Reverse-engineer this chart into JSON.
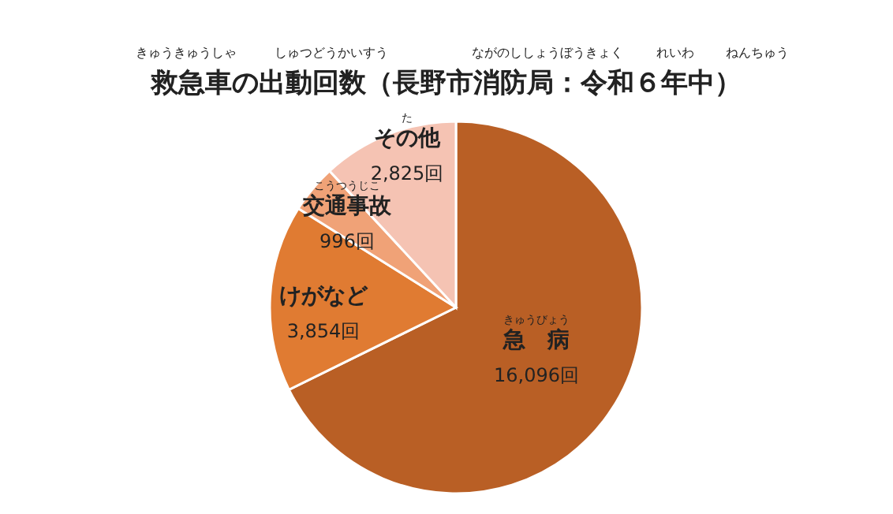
{
  "chart_data": {
    "type": "pie",
    "title": "救急車の出動回数（長野市消防局：令和６年中）",
    "categories": [
      "急　病",
      "けがなど",
      "交通事故",
      "その他"
    ],
    "values": [
      16096,
      3854,
      996,
      2825
    ],
    "colors": [
      "#b95f25",
      "#e07b32",
      "#f0a277",
      "#f5c3b3"
    ],
    "value_labels": [
      "16,096回",
      "3,854回",
      "996回",
      "2,825回"
    ],
    "annotations": [
      "きゅうきゅうしゃ",
      "しゅつどうかいすう",
      "ながのししょうぼうきょく",
      "れいわ",
      "ねんちゅう",
      "きゅうびょう",
      "こうつうじこ",
      "た"
    ]
  }
}
